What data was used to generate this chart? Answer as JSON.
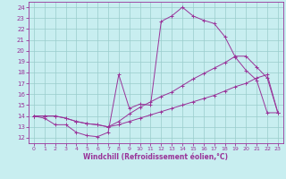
{
  "xlabel": "Windchill (Refroidissement éolien,°C)",
  "bg_color": "#c8eef0",
  "line_color": "#993399",
  "grid_color": "#99cccc",
  "xlim": [
    -0.5,
    23.5
  ],
  "ylim": [
    11.5,
    24.5
  ],
  "xticks": [
    0,
    1,
    2,
    3,
    4,
    5,
    6,
    7,
    8,
    9,
    10,
    11,
    12,
    13,
    14,
    15,
    16,
    17,
    18,
    19,
    20,
    21,
    22,
    23
  ],
  "yticks": [
    12,
    13,
    14,
    15,
    16,
    17,
    18,
    19,
    20,
    21,
    22,
    23,
    24
  ],
  "series": [
    {
      "x": [
        0,
        1,
        2,
        3,
        4,
        5,
        6,
        7,
        8,
        9,
        10,
        11,
        12,
        13,
        14,
        15,
        16,
        17,
        18,
        19,
        20,
        21,
        22,
        23
      ],
      "y": [
        14.0,
        13.8,
        13.2,
        13.2,
        12.5,
        12.2,
        12.1,
        12.5,
        17.8,
        14.7,
        15.1,
        15.0,
        22.7,
        23.2,
        24.0,
        23.2,
        22.8,
        22.5,
        21.3,
        19.4,
        18.2,
        17.3,
        14.3,
        14.3
      ]
    },
    {
      "x": [
        0,
        1,
        2,
        3,
        4,
        5,
        6,
        7,
        8,
        9,
        10,
        11,
        12,
        13,
        14,
        15,
        16,
        17,
        18,
        19,
        20,
        21,
        22,
        23
      ],
      "y": [
        14.0,
        14.0,
        14.0,
        13.8,
        13.5,
        13.3,
        13.2,
        13.0,
        13.5,
        14.2,
        14.8,
        15.3,
        15.8,
        16.2,
        16.8,
        17.4,
        17.9,
        18.4,
        18.9,
        19.5,
        19.5,
        18.5,
        17.5,
        14.3
      ]
    },
    {
      "x": [
        0,
        1,
        2,
        3,
        4,
        5,
        6,
        7,
        8,
        9,
        10,
        11,
        12,
        13,
        14,
        15,
        16,
        17,
        18,
        19,
        20,
        21,
        22,
        23
      ],
      "y": [
        14.0,
        14.0,
        14.0,
        13.8,
        13.5,
        13.3,
        13.2,
        13.0,
        13.2,
        13.5,
        13.8,
        14.1,
        14.4,
        14.7,
        15.0,
        15.3,
        15.6,
        15.9,
        16.3,
        16.7,
        17.0,
        17.5,
        17.8,
        14.3
      ]
    }
  ]
}
